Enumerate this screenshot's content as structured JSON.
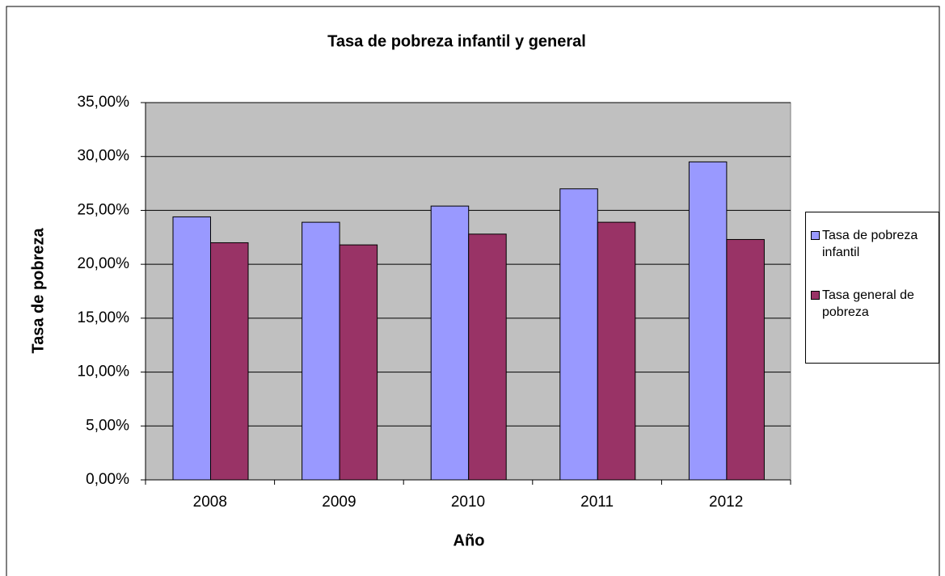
{
  "chart_data": {
    "type": "bar",
    "title": "Tasa de pobreza infantil y general",
    "x_label": "Año",
    "y_label": "Tasa de pobreza",
    "categories": [
      "2008",
      "2009",
      "2010",
      "2011",
      "2012"
    ],
    "series": [
      {
        "name": "Tasa de pobreza infantil",
        "color": "#9999ff",
        "values": [
          24.4,
          23.9,
          25.4,
          27.0,
          29.5
        ]
      },
      {
        "name": "Tasa general de pobreza",
        "color": "#993366",
        "values": [
          22.0,
          21.8,
          22.8,
          23.9,
          22.3
        ]
      }
    ],
    "ylim": [
      0,
      35
    ],
    "yticks": [
      {
        "value": 0,
        "label": "0,00%"
      },
      {
        "value": 5,
        "label": "5,00%"
      },
      {
        "value": 10,
        "label": "10,00%"
      },
      {
        "value": 15,
        "label": "15,00%"
      },
      {
        "value": 20,
        "label": "20,00%"
      },
      {
        "value": 25,
        "label": "25,00%"
      },
      {
        "value": 30,
        "label": "30,00%"
      },
      {
        "value": 35,
        "label": "35,00%"
      }
    ],
    "grid": true,
    "legend": "right",
    "plot_background": "#c0c0c0"
  }
}
